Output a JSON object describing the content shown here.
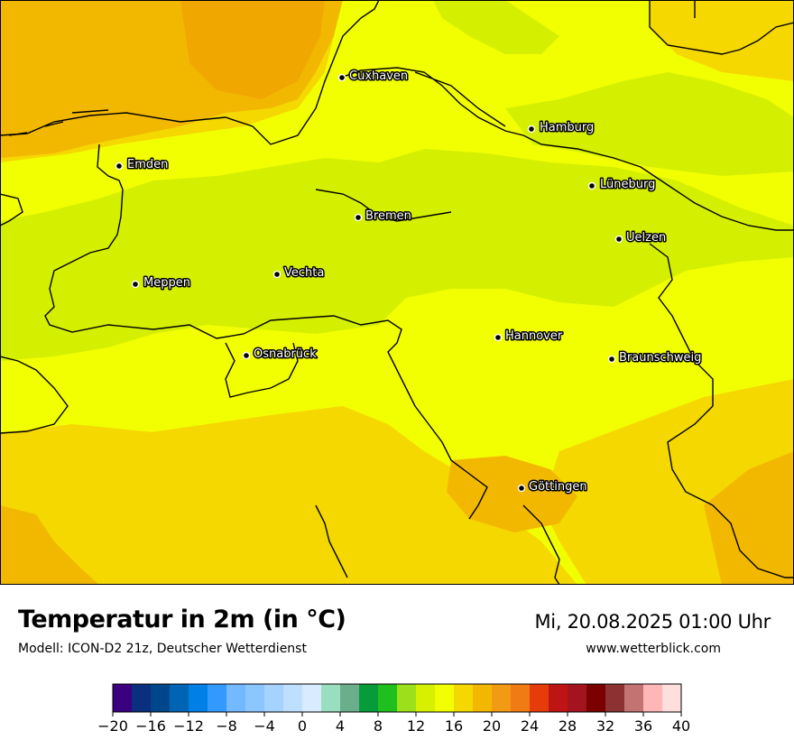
{
  "map": {
    "background_colors": [
      "#d4f000",
      "#f2ff00",
      "#f5d800",
      "#f2b800",
      "#f0a800"
    ],
    "coastline_color": "#000000",
    "cities": [
      {
        "name": "Cuxhaven"
      },
      {
        "name": "Hamburg"
      },
      {
        "name": "Emden"
      },
      {
        "name": "Lüneburg"
      },
      {
        "name": "Bremen"
      },
      {
        "name": "Uelzen"
      },
      {
        "name": "Vechta"
      },
      {
        "name": "Meppen"
      },
      {
        "name": "Hannover"
      },
      {
        "name": "Osnabrück"
      },
      {
        "name": "Braunschweig"
      },
      {
        "name": "Göttingen"
      }
    ]
  },
  "header": {
    "title": "Temperatur in 2m (in °C)",
    "model": "Modell: ICON-D2 21z, Deutscher Wetterdienst",
    "datetime": "Mi, 20.08.2025 01:00 Uhr",
    "website": "www.wetterblick.com"
  },
  "legend": {
    "colors": [
      "#3b007f",
      "#0a2f7f",
      "#00468a",
      "#0064b4",
      "#0080e6",
      "#3399ff",
      "#73b9ff",
      "#8cc6ff",
      "#a6d2ff",
      "#bfdfff",
      "#d9ecff",
      "#99dfbf",
      "#6aae8b",
      "#089b3a",
      "#1fbf1f",
      "#9be01a",
      "#d6f000",
      "#f2ff00",
      "#f5d800",
      "#f2b800",
      "#f29a14",
      "#f07a14",
      "#e63c0a",
      "#bf1414",
      "#a3141e",
      "#7a0000",
      "#8c3232",
      "#c47373",
      "#ffb6b6",
      "#ffdede"
    ],
    "ticks": [
      "−20",
      "−16",
      "−12",
      "−8",
      "−4",
      "0",
      "4",
      "8",
      "12",
      "16",
      "20",
      "24",
      "28",
      "32",
      "36",
      "40"
    ]
  }
}
